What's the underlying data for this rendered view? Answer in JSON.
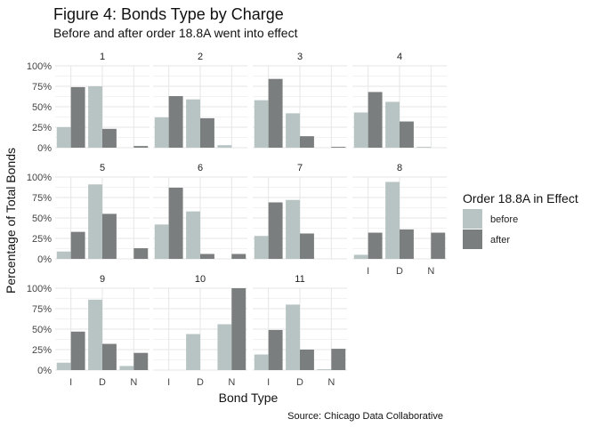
{
  "chart_data": {
    "type": "bar",
    "title": "Figure 4: Bonds Type by Charge",
    "subtitle": "Before and after order 18.8A went into effect",
    "xlabel": "Bond Type",
    "ylabel": "Percentage of Total Bonds",
    "caption": "Source: Chicago Data Collaborative",
    "categories": [
      "I",
      "D",
      "N"
    ],
    "ylim": [
      0,
      100
    ],
    "yticks": [
      "0%",
      "25%",
      "50%",
      "75%",
      "100%"
    ],
    "grid": true,
    "legend": {
      "title": "Order 18.8A in Effect",
      "placement": "right",
      "entries": [
        {
          "name": "before",
          "color": "#b8c4c4"
        },
        {
          "name": "after",
          "color": "#7a7e7e"
        }
      ]
    },
    "panels": [
      {
        "label": "1",
        "before": [
          25,
          75,
          0
        ],
        "after": [
          74,
          23,
          2
        ]
      },
      {
        "label": "2",
        "before": [
          37,
          59,
          3
        ],
        "after": [
          63,
          36,
          0
        ]
      },
      {
        "label": "3",
        "before": [
          58,
          42,
          0
        ],
        "after": [
          84,
          14,
          1
        ]
      },
      {
        "label": "4",
        "before": [
          43,
          56,
          1
        ],
        "after": [
          68,
          32,
          0
        ]
      },
      {
        "label": "5",
        "before": [
          9,
          91,
          0
        ],
        "after": [
          33,
          55,
          13
        ]
      },
      {
        "label": "6",
        "before": [
          42,
          58,
          0
        ],
        "after": [
          87,
          6,
          6
        ]
      },
      {
        "label": "7",
        "before": [
          28,
          72,
          0
        ],
        "after": [
          69,
          31,
          0
        ]
      },
      {
        "label": "8",
        "before": [
          5,
          94,
          0
        ],
        "after": [
          32,
          36,
          32
        ]
      },
      {
        "label": "9",
        "before": [
          9,
          86,
          5
        ],
        "after": [
          47,
          32,
          21
        ]
      },
      {
        "label": "10",
        "before": [
          0,
          44,
          56
        ],
        "after": [
          0,
          0,
          100
        ]
      },
      {
        "label": "11",
        "before": [
          19,
          80,
          1
        ],
        "after": [
          49,
          25,
          26
        ]
      }
    ]
  }
}
